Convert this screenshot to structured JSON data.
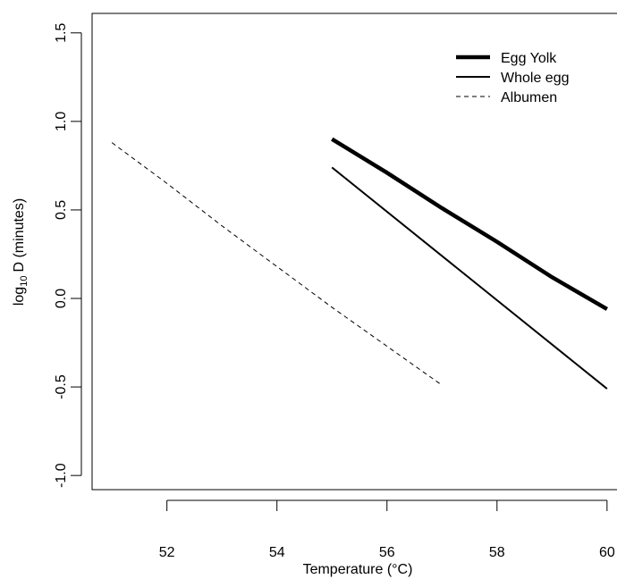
{
  "chart_data": {
    "type": "line",
    "xlabel": "Temperature (°C)",
    "ylabel": {
      "main": "log",
      "sub": "10",
      "rest": "D (minutes)"
    },
    "xlim": [
      50.64,
      60.36
    ],
    "ylim": [
      -1.08,
      1.61
    ],
    "xticks": [
      52,
      54,
      56,
      58,
      60
    ],
    "yticks": [
      {
        "value": -1,
        "label": "-1.0"
      },
      {
        "value": -0.5,
        "label": "-0.5"
      },
      {
        "value": 0,
        "label": "0.0"
      },
      {
        "value": 0.5,
        "label": "0.5"
      },
      {
        "value": 1,
        "label": "1.0"
      },
      1.5
    ],
    "legend": "top-right",
    "series": [
      {
        "name": "Egg Yolk",
        "color": "#000000",
        "width": 4.5,
        "dash": false,
        "x": [
          55,
          56,
          57,
          58,
          59,
          60
        ],
        "values": [
          0.9,
          0.71,
          0.51,
          0.32,
          0.12,
          -0.06
        ]
      },
      {
        "name": "Whole egg",
        "color": "#000000",
        "width": 2,
        "dash": false,
        "x": [
          55,
          60
        ],
        "values": [
          0.74,
          -0.51
        ]
      },
      {
        "name": "Albumen",
        "color": "#000000",
        "width": 1,
        "dash": true,
        "x": [
          51,
          52,
          53,
          54,
          55,
          56,
          57
        ],
        "values": [
          0.88,
          0.65,
          0.41,
          0.18,
          -0.05,
          -0.27,
          -0.49
        ]
      }
    ]
  }
}
